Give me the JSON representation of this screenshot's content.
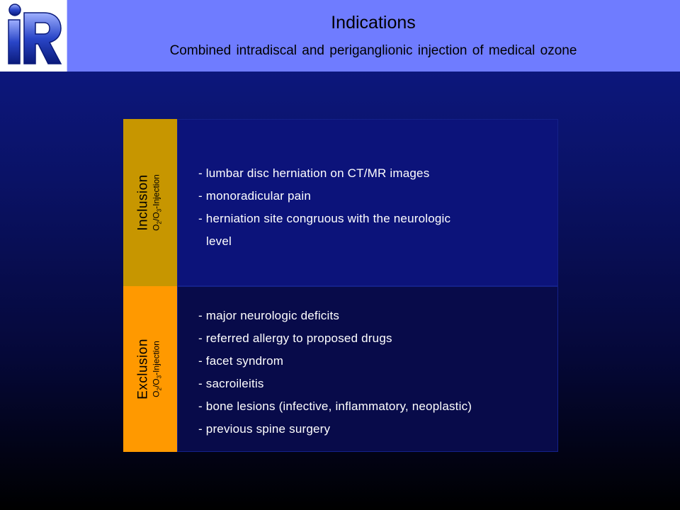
{
  "header": {
    "logo_icon": "iR-logo",
    "title": "Indications",
    "subtitle": "Combined intradiscal and periganglionic injection of medical ozone"
  },
  "inclusion": {
    "label": "Inclusion",
    "sublabel_parts": [
      "O",
      "2",
      "/O",
      "3",
      "-Injection"
    ],
    "items": [
      "- lumbar disc herniation on CT/MR images",
      "- monoradicular pain",
      "- herniation site congruous with the neurologic",
      "level"
    ]
  },
  "exclusion": {
    "label": "Exclusion",
    "sublabel_parts": [
      "O",
      "2",
      "/O",
      "3",
      "-Injection"
    ],
    "items": [
      "- major neurologic deficits",
      "- referred allergy to proposed drugs",
      "- facet syndrom",
      "- sacroileitis",
      "- bone lesions (infective, inflammatory, neoplastic)",
      "- previous spine surgery"
    ]
  },
  "colors": {
    "header": "#6f7cff",
    "inclusion_label": "#c79600",
    "exclusion_label": "#ff9900"
  }
}
